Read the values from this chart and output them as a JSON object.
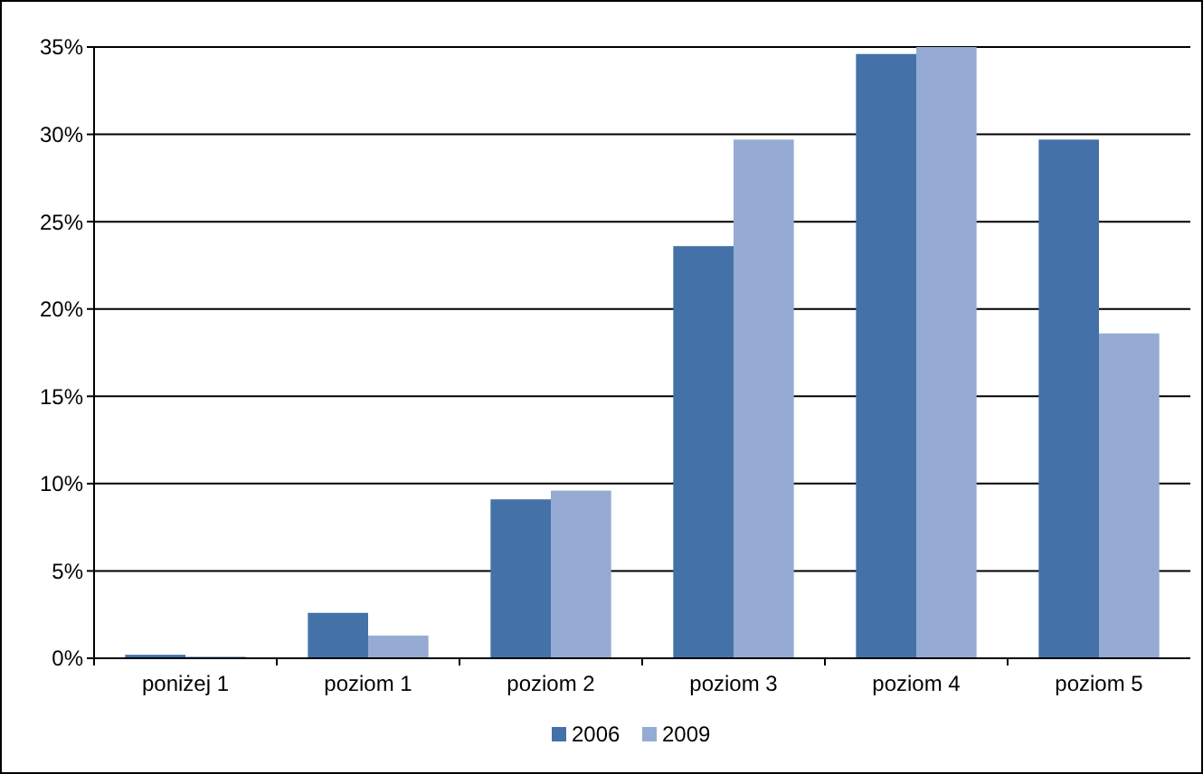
{
  "chart_data": {
    "type": "bar",
    "categories": [
      "poniżej 1",
      "poziom 1",
      "poziom 2",
      "poziom 3",
      "poziom 4",
      "poziom 5"
    ],
    "series": [
      {
        "name": "2006",
        "color": "#4472a8",
        "values": [
          0.2,
          2.6,
          9.1,
          23.6,
          34.6,
          29.7
        ]
      },
      {
        "name": "2009",
        "color": "#95abd3",
        "values": [
          0.1,
          1.3,
          9.6,
          29.7,
          35.0,
          18.6
        ]
      }
    ],
    "ylim": [
      0,
      35
    ],
    "yticks": [
      {
        "value": 0,
        "label": "0%"
      },
      {
        "value": 5,
        "label": "5%"
      },
      {
        "value": 10,
        "label": "10%"
      },
      {
        "value": 15,
        "label": "15%"
      },
      {
        "value": 20,
        "label": "20%"
      },
      {
        "value": 25,
        "label": "25%"
      },
      {
        "value": 30,
        "label": "30%"
      },
      {
        "value": 35,
        "label": "35%"
      }
    ],
    "grid": "y",
    "legend": "bottom"
  }
}
